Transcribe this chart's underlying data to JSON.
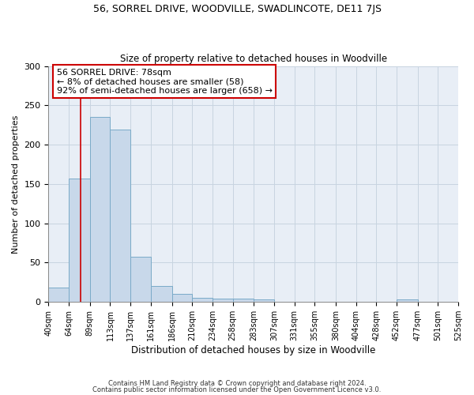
{
  "title1": "56, SORREL DRIVE, WOODVILLE, SWADLINCOTE, DE11 7JS",
  "title2": "Size of property relative to detached houses in Woodville",
  "xlabel": "Distribution of detached houses by size in Woodville",
  "ylabel": "Number of detached properties",
  "bin_edges": [
    40,
    64,
    89,
    113,
    137,
    161,
    186,
    210,
    234,
    258,
    283,
    307,
    331,
    355,
    380,
    404,
    428,
    452,
    477,
    501,
    525
  ],
  "bar_heights": [
    18,
    157,
    235,
    219,
    57,
    20,
    10,
    5,
    4,
    4,
    3,
    0,
    0,
    0,
    0,
    0,
    0,
    3,
    0,
    0
  ],
  "bar_color": "#c8d8ea",
  "bar_edge_color": "#7aaac8",
  "grid_color": "#c8d4e0",
  "background_color": "#ffffff",
  "plot_bg_color": "#e8eef6",
  "property_line_x": 78,
  "property_line_color": "#cc0000",
  "annotation_text": "56 SORREL DRIVE: 78sqm\n← 8% of detached houses are smaller (58)\n92% of semi-detached houses are larger (658) →",
  "annotation_box_facecolor": "#ffffff",
  "annotation_border_color": "#cc0000",
  "ylim": [
    0,
    300
  ],
  "yticks": [
    0,
    50,
    100,
    150,
    200,
    250,
    300
  ],
  "footer1": "Contains HM Land Registry data © Crown copyright and database right 2024.",
  "footer2": "Contains public sector information licensed under the Open Government Licence v3.0."
}
